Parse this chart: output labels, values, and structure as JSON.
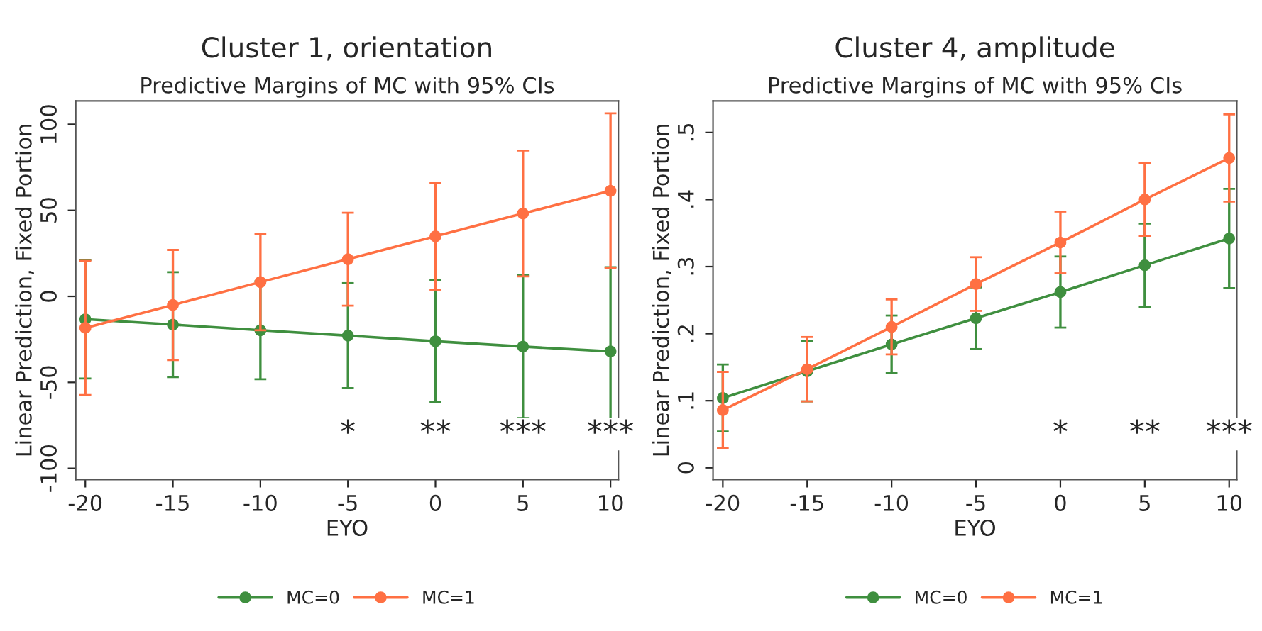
{
  "chart_data": [
    {
      "type": "line",
      "title": "Cluster 1, orientation",
      "subtitle": "Predictive Margins of MC with 95% CIs",
      "xlabel": "EYO",
      "ylabel": "Linear Prediction, Fixed Portion",
      "x": [
        -20,
        -15,
        -10,
        -5,
        0,
        5,
        10
      ],
      "series": [
        {
          "name": "MC=0",
          "color": "#3f8f3f",
          "values": [
            -13.3,
            -16.4,
            -19.7,
            -22.8,
            -26.1,
            -29.2,
            -32.0
          ],
          "errors": [
            34.5,
            30.5,
            28.5,
            30.5,
            35.5,
            41.5,
            49.0
          ]
        },
        {
          "name": "MC=1",
          "color": "#ff7043",
          "values": [
            -18.3,
            -5.0,
            8.3,
            21.6,
            34.9,
            48.2,
            61.4
          ],
          "errors": [
            39.0,
            32.0,
            28.0,
            27.0,
            31.0,
            36.6,
            45.0
          ]
        }
      ],
      "xlim": [
        -20.55,
        10.45
      ],
      "ylim": [
        -106.5,
        113.6
      ],
      "xticks": [
        -20,
        -15,
        -10,
        -5,
        0,
        5,
        10
      ],
      "yticks": [
        -100,
        -50,
        0,
        50,
        100
      ],
      "marker": "circle",
      "grid": false,
      "legend": "bottom",
      "annotations": [
        "*",
        "**",
        "***",
        "***"
      ]
    },
    {
      "type": "line",
      "title": "Cluster 4, amplitude",
      "subtitle": "Predictive Margins of MC with 95% CIs",
      "xlabel": "EYO",
      "ylabel": "Linear Prediction, Fixed Portion",
      "x": [
        -20,
        -15,
        -10,
        -5,
        0,
        5,
        10
      ],
      "series": [
        {
          "name": "MC=0",
          "color": "#3f8f3f",
          "values": [
            0.104,
            0.144,
            0.184,
            0.223,
            0.262,
            0.302,
            0.342
          ],
          "errors": [
            0.05,
            0.045,
            0.043,
            0.046,
            0.053,
            0.062,
            0.074
          ]
        },
        {
          "name": "MC=1",
          "color": "#ff7043",
          "values": [
            0.086,
            0.147,
            0.21,
            0.274,
            0.336,
            0.4,
            0.462
          ],
          "errors": [
            0.057,
            0.048,
            0.041,
            0.04,
            0.046,
            0.054,
            0.065
          ]
        }
      ],
      "xlim": [
        -20.58,
        10.45
      ],
      "ylim": [
        -0.0176,
        0.547
      ],
      "xticks": [
        -20,
        -15,
        -10,
        -5,
        0,
        5,
        10
      ],
      "yticks": [
        0,
        {
          "value": 0.1,
          "label": ".1"
        },
        {
          "value": 0.2,
          "label": ".2"
        },
        {
          "value": 0.3,
          "label": ".3"
        },
        {
          "value": 0.4,
          "label": ".4"
        },
        {
          "value": 0.5,
          "label": ".5"
        }
      ],
      "marker": "circle",
      "grid": false,
      "legend": "bottom",
      "annotations": [
        "*",
        "**",
        "***"
      ]
    }
  ]
}
